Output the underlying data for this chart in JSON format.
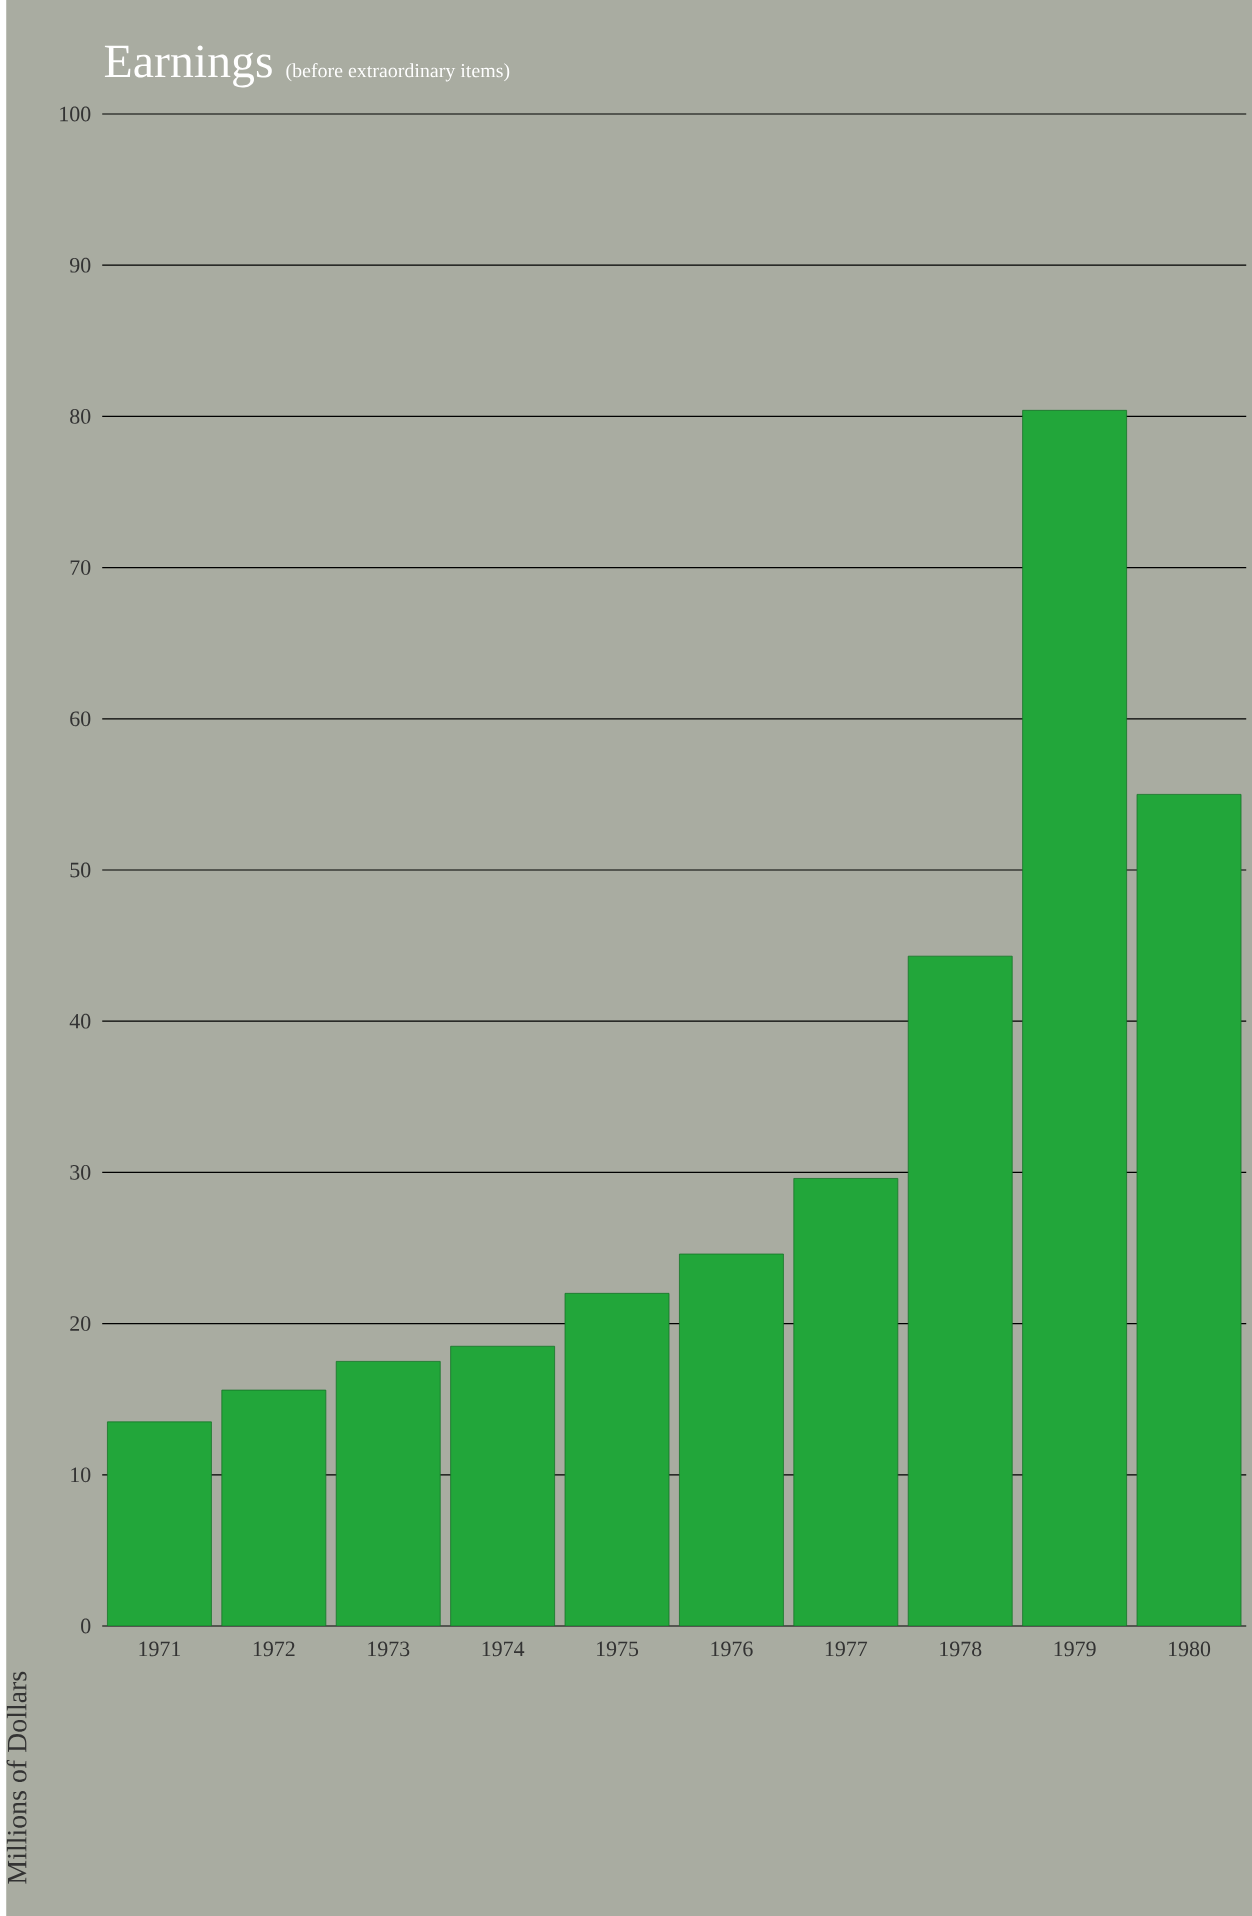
{
  "chart_data": {
    "type": "bar",
    "title": "Earnings",
    "subtitle": "(before extraordinary items)",
    "ylabel": "Millions of Dollars",
    "categories": [
      "1971",
      "1972",
      "1973",
      "1974",
      "1975",
      "1976",
      "1977",
      "1978",
      "1979",
      "1980"
    ],
    "values": [
      13.5,
      15.6,
      17.5,
      18.5,
      22.0,
      24.6,
      29.6,
      44.3,
      80.4,
      55.0
    ],
    "color": "#22a63a",
    "ylim": [
      0,
      100
    ],
    "yticks": [
      0,
      10,
      20,
      30,
      40,
      50,
      60,
      70,
      80,
      90,
      100
    ],
    "grid": "y"
  }
}
